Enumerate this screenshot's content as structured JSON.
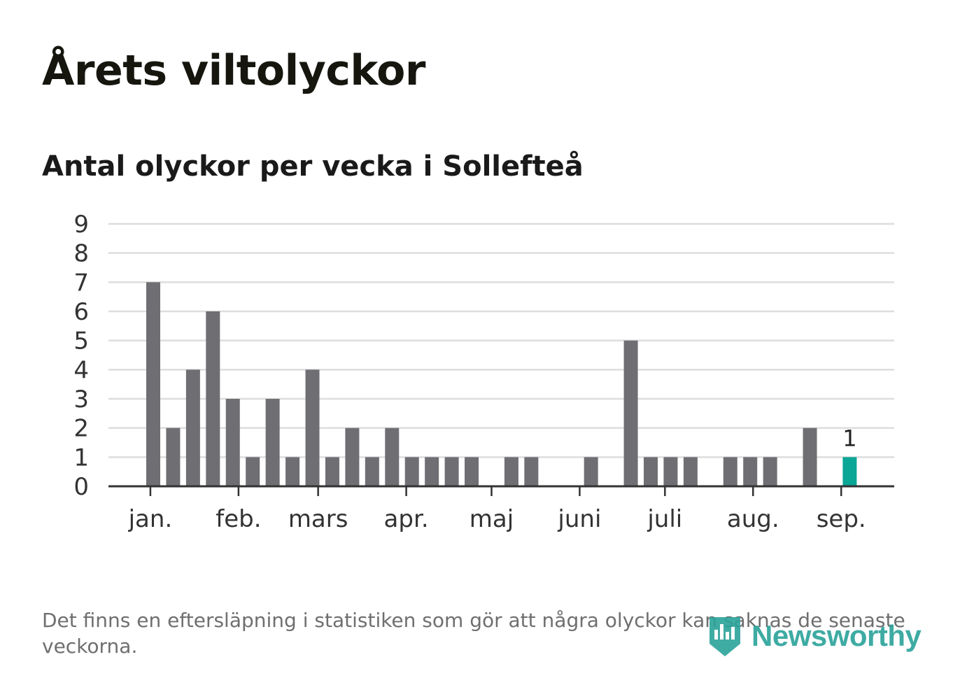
{
  "title": "Årets viltolyckor",
  "subtitle": "Antal olyckor per vecka i Sollefteå",
  "footnote": "Det finns en eftersläpning i statistiken som gör att några olyckor kan saknas de senaste veckorna.",
  "logo": {
    "text": "Newsworthy",
    "icon": "newsworthy-logo-icon"
  },
  "colors": {
    "bar": "#6f6e73",
    "highlight": "#0aa696",
    "grid": "#dddddd",
    "axis": "#333333",
    "text": "#333333"
  },
  "chart_data": {
    "type": "bar",
    "title": "Antal olyckor per vecka i Sollefteå",
    "xlabel": "",
    "ylabel": "",
    "ylim": [
      0,
      9
    ],
    "yticks": [
      "0",
      "1",
      "2",
      "3",
      "4",
      "5",
      "6",
      "7",
      "8",
      "9"
    ],
    "grid": true,
    "week_start_date": "2017-01-02",
    "x_week_dates": [
      "2017-01-02",
      "2017-01-09",
      "2017-01-16",
      "2017-01-23",
      "2017-01-30",
      "2017-02-06",
      "2017-02-13",
      "2017-02-20",
      "2017-02-27",
      "2017-03-06",
      "2017-03-13",
      "2017-03-20",
      "2017-03-27",
      "2017-04-03",
      "2017-04-10",
      "2017-04-17",
      "2017-04-24",
      "2017-05-01",
      "2017-05-08",
      "2017-05-15",
      "2017-05-22",
      "2017-05-29",
      "2017-06-05",
      "2017-06-12",
      "2017-06-19",
      "2017-06-26",
      "2017-07-03",
      "2017-07-10",
      "2017-07-17",
      "2017-07-24",
      "2017-07-31",
      "2017-08-07",
      "2017-08-14",
      "2017-08-21",
      "2017-08-28",
      "2017-09-04"
    ],
    "values": [
      7,
      2,
      4,
      6,
      3,
      1,
      3,
      1,
      4,
      1,
      2,
      1,
      2,
      1,
      1,
      1,
      1,
      0,
      1,
      1,
      0,
      0,
      1,
      0,
      5,
      1,
      1,
      1,
      0,
      1,
      1,
      1,
      0,
      2,
      0,
      1
    ],
    "highlight_index": 35,
    "data_label": {
      "index": 35,
      "text": "1"
    },
    "month_labels": [
      {
        "label": "jan.",
        "date": "2017-01-01"
      },
      {
        "label": "feb.",
        "date": "2017-02-01"
      },
      {
        "label": "mars",
        "date": "2017-03-01"
      },
      {
        "label": "apr.",
        "date": "2017-04-01"
      },
      {
        "label": "maj",
        "date": "2017-05-01"
      },
      {
        "label": "juni",
        "date": "2017-06-01"
      },
      {
        "label": "juli",
        "date": "2017-07-01"
      },
      {
        "label": "aug.",
        "date": "2017-08-01"
      },
      {
        "label": "sep.",
        "date": "2017-09-01"
      }
    ]
  }
}
